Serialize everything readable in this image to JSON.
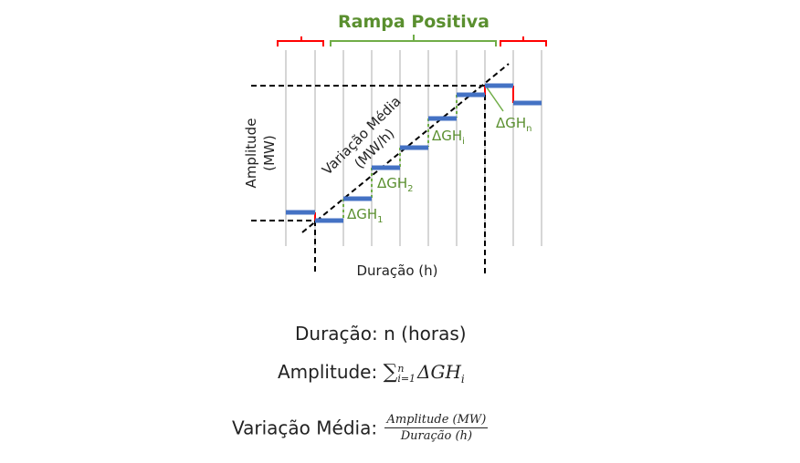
{
  "diagram": {
    "ramp_label": "Rampa Positiva",
    "x_axis_label": "Duração (h)",
    "y_axis_label_line1": "Amplitude",
    "y_axis_label_line2": "(MW)",
    "slope_label_line1": "Variação Média",
    "slope_label_line2": "(MW/h)",
    "delta_prefix": "ΔGH",
    "delta_subscripts": [
      "1",
      "2",
      "i",
      "n"
    ],
    "colors": {
      "steps": "#4472c4",
      "ramp_bracket": "#70ad47",
      "outside_bracket": "#ff0000",
      "labels_green": "#5a8f2f",
      "grid": "#c8c8c8"
    }
  },
  "formulas": {
    "duration_label": "Duração:",
    "duration_value": "n (horas)",
    "amplitude_label": "Amplitude:",
    "sum_symbol": "∑",
    "sum_upper": "n",
    "sum_lower": "i=1",
    "sum_term": "ΔGH",
    "sum_term_sub": "i",
    "variation_label": "Variação Média:",
    "fraction_numerator": "Amplitude (MW)",
    "fraction_denominator": "Duração (h)"
  }
}
